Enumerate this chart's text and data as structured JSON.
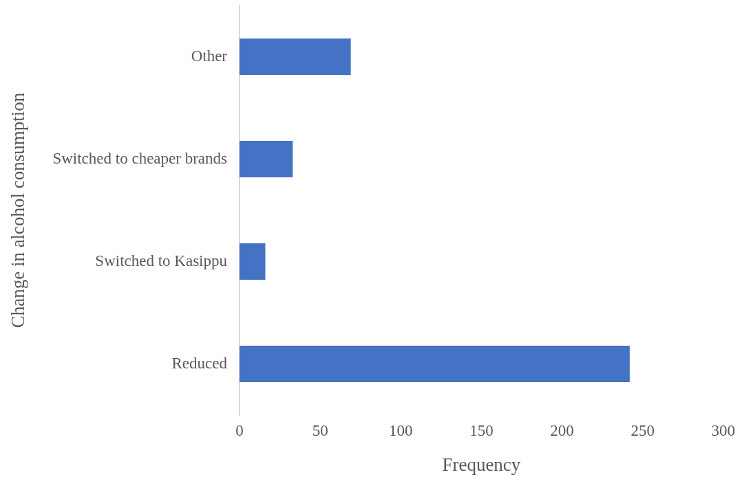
{
  "chart_data": {
    "type": "bar",
    "orientation": "horizontal",
    "xlabel": "Frequency",
    "ylabel": "Change in alcohol consumption",
    "categories": [
      "Other",
      "Switched to cheaper brands",
      "Switched to Kasippu",
      "Reduced"
    ],
    "values": [
      69,
      33,
      16,
      242
    ],
    "color": "#4472c4",
    "xlim": [
      0,
      300
    ],
    "xticks": [
      0,
      50,
      100,
      150,
      200,
      250,
      300
    ]
  }
}
